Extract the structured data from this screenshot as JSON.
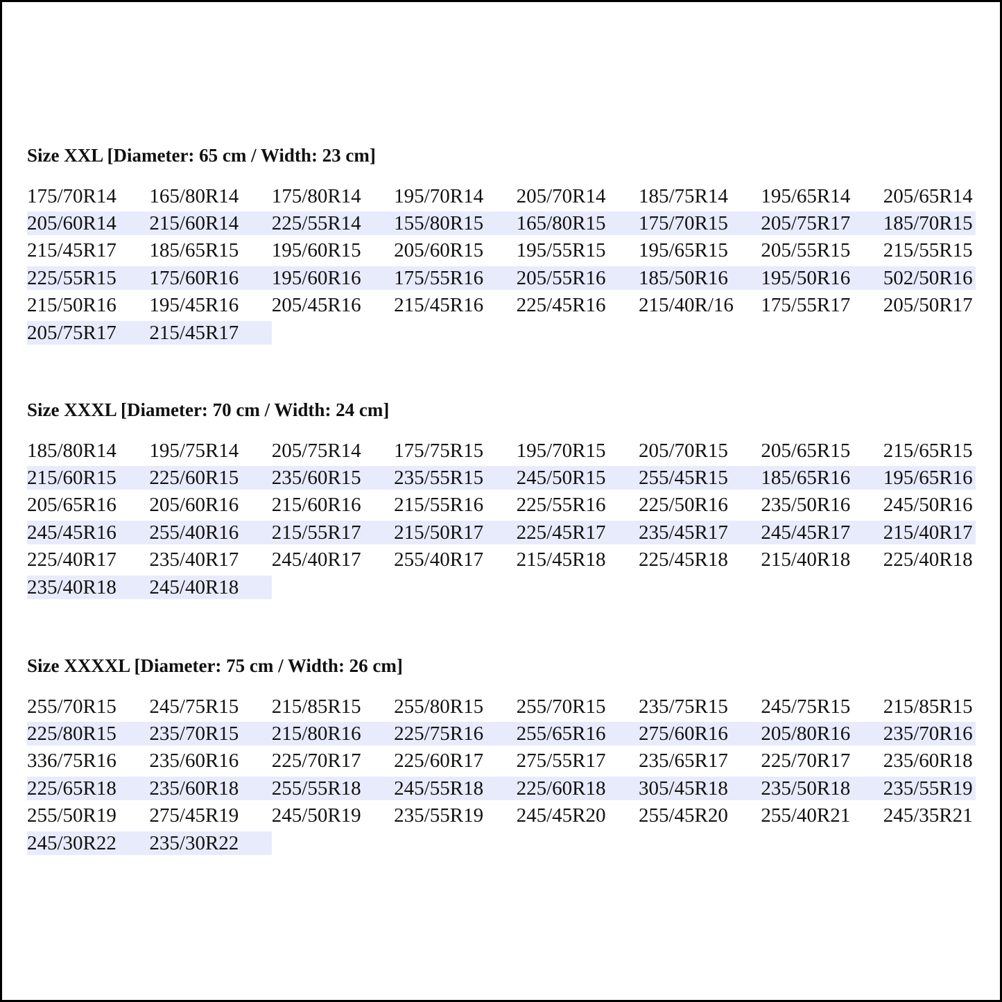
{
  "colors": {
    "row_shade": "#e8ebfb",
    "text": "#111111",
    "border": "#000000"
  },
  "sections": [
    {
      "title": "Size XXL [Diameter: 65 cm / Width: 23 cm]",
      "sizes": [
        "175/70R14",
        "165/80R14",
        "175/80R14",
        "195/70R14",
        "205/70R14",
        "185/75R14",
        "195/65R14",
        "205/65R14",
        "205/60R14",
        "215/60R14",
        "225/55R14",
        "155/80R15",
        "165/80R15",
        "175/70R15",
        "205/75R17",
        "185/70R15",
        "215/45R17",
        "185/65R15",
        "195/60R15",
        "205/60R15",
        "195/55R15",
        "195/65R15",
        "205/55R15",
        "215/55R15",
        "225/55R15",
        "175/60R16",
        "195/60R16",
        "175/55R16",
        "205/55R16",
        "185/50R16",
        "195/50R16",
        "502/50R16",
        "215/50R16",
        "195/45R16",
        "205/45R16",
        "215/45R16",
        "225/45R16",
        "215/40R/16",
        "175/55R17",
        "205/50R17",
        "205/75R17",
        "215/45R17"
      ]
    },
    {
      "title": "Size XXXL [Diameter: 70 cm / Width: 24 cm]",
      "sizes": [
        "185/80R14",
        "195/75R14",
        "205/75R14",
        "175/75R15",
        "195/70R15",
        "205/70R15",
        "205/65R15",
        "215/65R15",
        "215/60R15",
        "225/60R15",
        "235/60R15",
        "235/55R15",
        "245/50R15",
        "255/45R15",
        "185/65R16",
        "195/65R16",
        "205/65R16",
        "205/60R16",
        "215/60R16",
        "215/55R16",
        "225/55R16",
        "225/50R16",
        "235/50R16",
        "245/50R16",
        "245/45R16",
        "255/40R16",
        "215/55R17",
        "215/50R17",
        "225/45R17",
        "235/45R17",
        "245/45R17",
        "215/40R17",
        "225/40R17",
        "235/40R17",
        "245/40R17",
        "255/40R17",
        "215/45R18",
        "225/45R18",
        "215/40R18",
        "225/40R18",
        "235/40R18",
        "245/40R18"
      ]
    },
    {
      "title": "Size XXXXL [Diameter: 75 cm / Width: 26 cm]",
      "sizes": [
        "255/70R15",
        "245/75R15",
        "215/85R15",
        "255/80R15",
        "255/70R15",
        "235/75R15",
        "245/75R15",
        "215/85R15",
        "225/80R15",
        "235/70R15",
        "215/80R16",
        "225/75R16",
        "255/65R16",
        "275/60R16",
        "205/80R16",
        "235/70R16",
        "336/75R16",
        "235/60R16",
        "225/70R17",
        "225/60R17",
        "275/55R17",
        "235/65R17",
        "225/70R17",
        "235/60R18",
        "225/65R18",
        "235/60R18",
        "255/55R18",
        "245/55R18",
        "225/60R18",
        "305/45R18",
        "235/50R18",
        "235/55R19",
        "255/50R19",
        "275/45R19",
        "245/50R19",
        "235/55R19",
        "245/45R20",
        "255/45R20",
        "255/40R21",
        "245/35R21",
        "245/30R22",
        "235/30R22"
      ]
    }
  ]
}
